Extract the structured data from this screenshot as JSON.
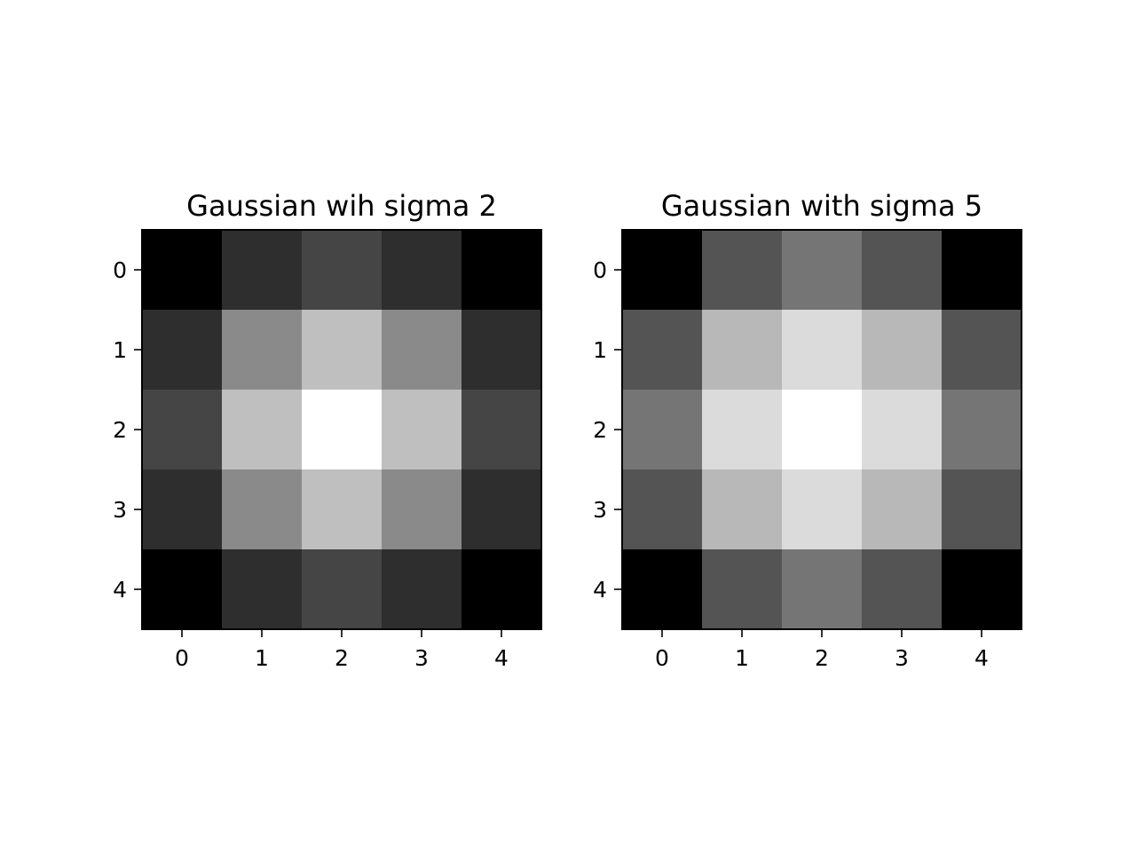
{
  "chart_data": [
    {
      "type": "heatmap",
      "title": "Gaussian wih sigma 2",
      "colormap": "gray",
      "x_ticks": [
        "0",
        "1",
        "2",
        "3",
        "4"
      ],
      "y_ticks": [
        "0",
        "1",
        "2",
        "3",
        "4"
      ],
      "values": [
        [
          0.0,
          0.18,
          0.27,
          0.18,
          0.0
        ],
        [
          0.18,
          0.54,
          0.75,
          0.54,
          0.18
        ],
        [
          0.27,
          0.75,
          1.0,
          0.75,
          0.27
        ],
        [
          0.18,
          0.54,
          0.75,
          0.54,
          0.18
        ],
        [
          0.0,
          0.18,
          0.27,
          0.18,
          0.0
        ]
      ],
      "vmin": 0,
      "vmax": 1,
      "xlabel": "",
      "ylabel": ""
    },
    {
      "type": "heatmap",
      "title": "Gaussian with sigma 5",
      "colormap": "gray",
      "x_ticks": [
        "0",
        "1",
        "2",
        "3",
        "4"
      ],
      "y_ticks": [
        "0",
        "1",
        "2",
        "3",
        "4"
      ],
      "values": [
        [
          0.0,
          0.33,
          0.46,
          0.33,
          0.0
        ],
        [
          0.33,
          0.72,
          0.86,
          0.72,
          0.33
        ],
        [
          0.46,
          0.86,
          1.0,
          0.86,
          0.46
        ],
        [
          0.33,
          0.72,
          0.86,
          0.72,
          0.33
        ],
        [
          0.0,
          0.33,
          0.46,
          0.33,
          0.0
        ]
      ],
      "vmin": 0,
      "vmax": 1,
      "xlabel": "",
      "ylabel": ""
    }
  ]
}
